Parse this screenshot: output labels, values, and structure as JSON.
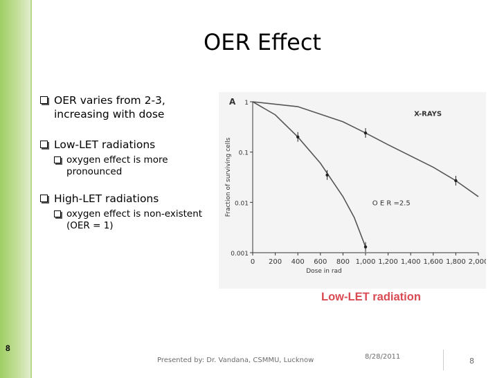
{
  "slide": {
    "title": "OER Effect",
    "bullets": [
      {
        "text": "OER varies from 2-3, increasing with dose",
        "sub": []
      },
      {
        "text": "Low-LET radiations",
        "sub": [
          "oxygen effect is more pronounced"
        ]
      },
      {
        "text": "High-LET radiations",
        "sub": [
          "oxygen effect is non-existent (OER = 1)"
        ]
      }
    ],
    "caption": "Low-LET radiation",
    "left_number": "8",
    "footer": {
      "presenter": "Presented by: Dr. Vandana, CSMMU, Lucknow",
      "date": "8/28/2011",
      "page": "8"
    }
  },
  "chart_data": {
    "type": "line",
    "panel_label": "A",
    "xlabel": "Dose in rad",
    "ylabel": "Fraction of surviving cells",
    "x_ticks": [
      "0",
      "200",
      "400",
      "600",
      "800",
      "1,000",
      "1,200",
      "1,400",
      "1,600",
      "1,800",
      "2,000"
    ],
    "y_ticks": [
      "1",
      "0.1",
      "0.01",
      "0.001"
    ],
    "xlim": [
      0,
      2000
    ],
    "ylim": [
      0.001,
      1
    ],
    "y_scale": "log",
    "annotations": [
      "X-RAYS",
      "O E R =2.5"
    ],
    "series": [
      {
        "x": [
          0,
          200,
          400,
          600,
          800,
          900,
          1000
        ],
        "y": [
          1.0,
          0.55,
          0.2,
          0.06,
          0.013,
          0.005,
          0.0013
        ]
      },
      {
        "x": [
          0,
          400,
          800,
          1000,
          1200,
          1600,
          1800,
          2000
        ],
        "y": [
          1.0,
          0.8,
          0.4,
          0.24,
          0.14,
          0.05,
          0.027,
          0.013
        ]
      }
    ],
    "points": [
      {
        "x": 400,
        "y": 0.2
      },
      {
        "x": 660,
        "y": 0.035
      },
      {
        "x": 1000,
        "y": 0.0013
      },
      {
        "x": 1000,
        "y": 0.24
      },
      {
        "x": 1800,
        "y": 0.027
      }
    ],
    "colors": {
      "curve": "#555555",
      "text": "#333333",
      "caption": "#d94a52",
      "bar": "#9fce63"
    }
  }
}
